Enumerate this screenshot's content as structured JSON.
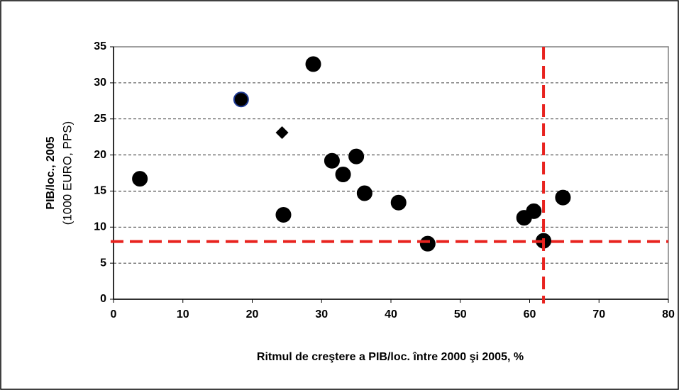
{
  "chart_data": {
    "type": "scatter",
    "x_label": "Ritmul de creştere a PIB/loc. între 2000 şi 2005, %",
    "y_label": "PIB/loc., 2005",
    "y_label_sub": "(1000 EURO, PPS)",
    "xlim": [
      0,
      80
    ],
    "xticks": [
      0,
      10,
      20,
      30,
      40,
      50,
      60,
      70,
      80
    ],
    "ylim": [
      0,
      35
    ],
    "yticks": [
      0,
      5,
      10,
      15,
      20,
      25,
      30,
      35
    ],
    "grid": true,
    "series": [
      {
        "color": "#000000",
        "marker": "circle",
        "x": [
          3.8,
          24.5,
          28.8,
          31.5,
          33.1,
          35.0,
          36.2,
          41.1,
          45.3,
          59.2,
          60.6,
          62.0,
          64.8
        ],
        "values": [
          16.7,
          11.7,
          32.6,
          19.2,
          17.3,
          19.8,
          14.7,
          13.4,
          7.7,
          11.3,
          12.2,
          8.1,
          14.1
        ]
      },
      {
        "color": "#000000",
        "edge": "#1f3a93",
        "marker": "circle",
        "x": [
          18.4
        ],
        "values": [
          27.7
        ]
      },
      {
        "color": "#000000",
        "marker": "diamond",
        "x": [
          24.3
        ],
        "values": [
          23.1
        ]
      }
    ],
    "reference_lines": {
      "color": "#e8231f",
      "y": 8,
      "x": 62
    }
  }
}
